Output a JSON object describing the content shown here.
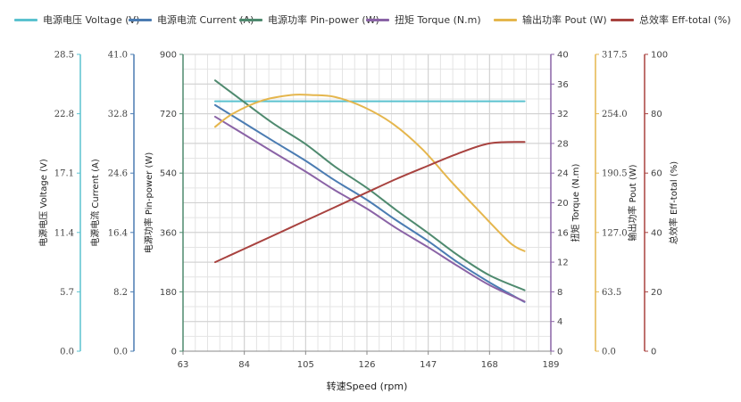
{
  "chart_data": {
    "type": "line",
    "legend_placement": "top",
    "grid": true,
    "x_axis": {
      "label": "转速Speed (rpm)",
      "range": [
        63,
        189
      ],
      "ticks": [
        "63",
        "84",
        "105",
        "126",
        "147",
        "168",
        "189"
      ]
    },
    "axes": [
      {
        "id": "voltage",
        "label": "电源电压 Voltage (V)",
        "range": [
          0,
          28.5
        ],
        "ticks": [
          "0.0",
          "5.7",
          "11.4",
          "17.1",
          "22.8",
          "28.5"
        ],
        "color": "#5bc2cf"
      },
      {
        "id": "current",
        "label": "电源电流 Current (A)",
        "range": [
          0,
          41.0
        ],
        "ticks": [
          "0.0",
          "8.2",
          "16.4",
          "24.6",
          "32.8",
          "41.0"
        ],
        "color": "#4b7cb2"
      },
      {
        "id": "pin",
        "label": "电源功率 Pin-power (W)",
        "range": [
          0,
          900
        ],
        "ticks": [
          "0",
          "180",
          "360",
          "540",
          "720",
          "900"
        ],
        "color": "#4f8a6f"
      },
      {
        "id": "torque",
        "label": "扭矩 Torque (N.m)",
        "range": [
          0,
          40
        ],
        "ticks": [
          "0",
          "4",
          "8",
          "12",
          "16",
          "20",
          "24",
          "28",
          "32",
          "36",
          "40"
        ],
        "color": "#8a63a6"
      },
      {
        "id": "pout",
        "label": "输出功率 Pout (W)",
        "range": [
          0,
          317.5
        ],
        "ticks": [
          "0.0",
          "63.5",
          "127.0",
          "190.5",
          "254.0",
          "317.5"
        ],
        "color": "#e5b64d"
      },
      {
        "id": "eff",
        "label": "总效率 Eff-total (%)",
        "range": [
          0,
          100
        ],
        "ticks": [
          "0",
          "20",
          "40",
          "60",
          "80",
          "100"
        ],
        "color": "#a8423f"
      }
    ],
    "series": [
      {
        "name": "电源电压 Voltage (V)",
        "axis": "voltage",
        "color": "#5bc2cf",
        "x": [
          74,
          84,
          94,
          105,
          115,
          126,
          136,
          147,
          157,
          168,
          180
        ],
        "y": [
          24.0,
          24.0,
          24.0,
          24.0,
          24.0,
          24.0,
          24.0,
          24.0,
          24.0,
          24.0,
          24.0
        ]
      },
      {
        "name": "电源电流 Current (A)",
        "axis": "current",
        "color": "#4b7cb2",
        "x": [
          74,
          84,
          94,
          105,
          115,
          126,
          136,
          147,
          157,
          168,
          180
        ],
        "y": [
          34.0,
          31.5,
          29.0,
          26.3,
          23.6,
          20.9,
          18.1,
          15.2,
          12.3,
          9.5,
          6.8
        ]
      },
      {
        "name": "电源功率 Pin-power (W)",
        "axis": "pin",
        "color": "#4f8a6f",
        "x": [
          74,
          84,
          94,
          105,
          115,
          126,
          136,
          147,
          157,
          168,
          180
        ],
        "y": [
          821,
          755,
          690,
          628,
          560,
          495,
          428,
          358,
          292,
          230,
          185
        ]
      },
      {
        "name": "扭矩 Torque (N.m)",
        "axis": "torque",
        "color": "#8a63a6",
        "x": [
          74,
          84,
          94,
          105,
          115,
          126,
          136,
          147,
          157,
          168,
          180
        ],
        "y": [
          31.6,
          29.2,
          26.8,
          24.2,
          21.7,
          19.2,
          16.6,
          14.0,
          11.5,
          8.9,
          6.7
        ]
      },
      {
        "name": "输出功率 Pout (W)",
        "axis": "pout",
        "color": "#e5b64d",
        "x": [
          74,
          80,
          90,
          100,
          107,
          115,
          125,
          135,
          145,
          155,
          165,
          175,
          180
        ],
        "y": [
          240,
          254,
          268,
          274,
          274,
          272,
          261,
          243,
          216,
          181,
          148,
          116,
          107
        ]
      },
      {
        "name": "总效率 Eff-total (%)",
        "axis": "eff",
        "color": "#a8423f",
        "x": [
          74,
          84,
          94,
          105,
          115,
          126,
          136,
          147,
          157,
          168,
          180
        ],
        "y": [
          30,
          34.5,
          39.0,
          44.0,
          48.5,
          53.5,
          58.0,
          62.5,
          66.5,
          70.0,
          70.5
        ]
      }
    ]
  }
}
